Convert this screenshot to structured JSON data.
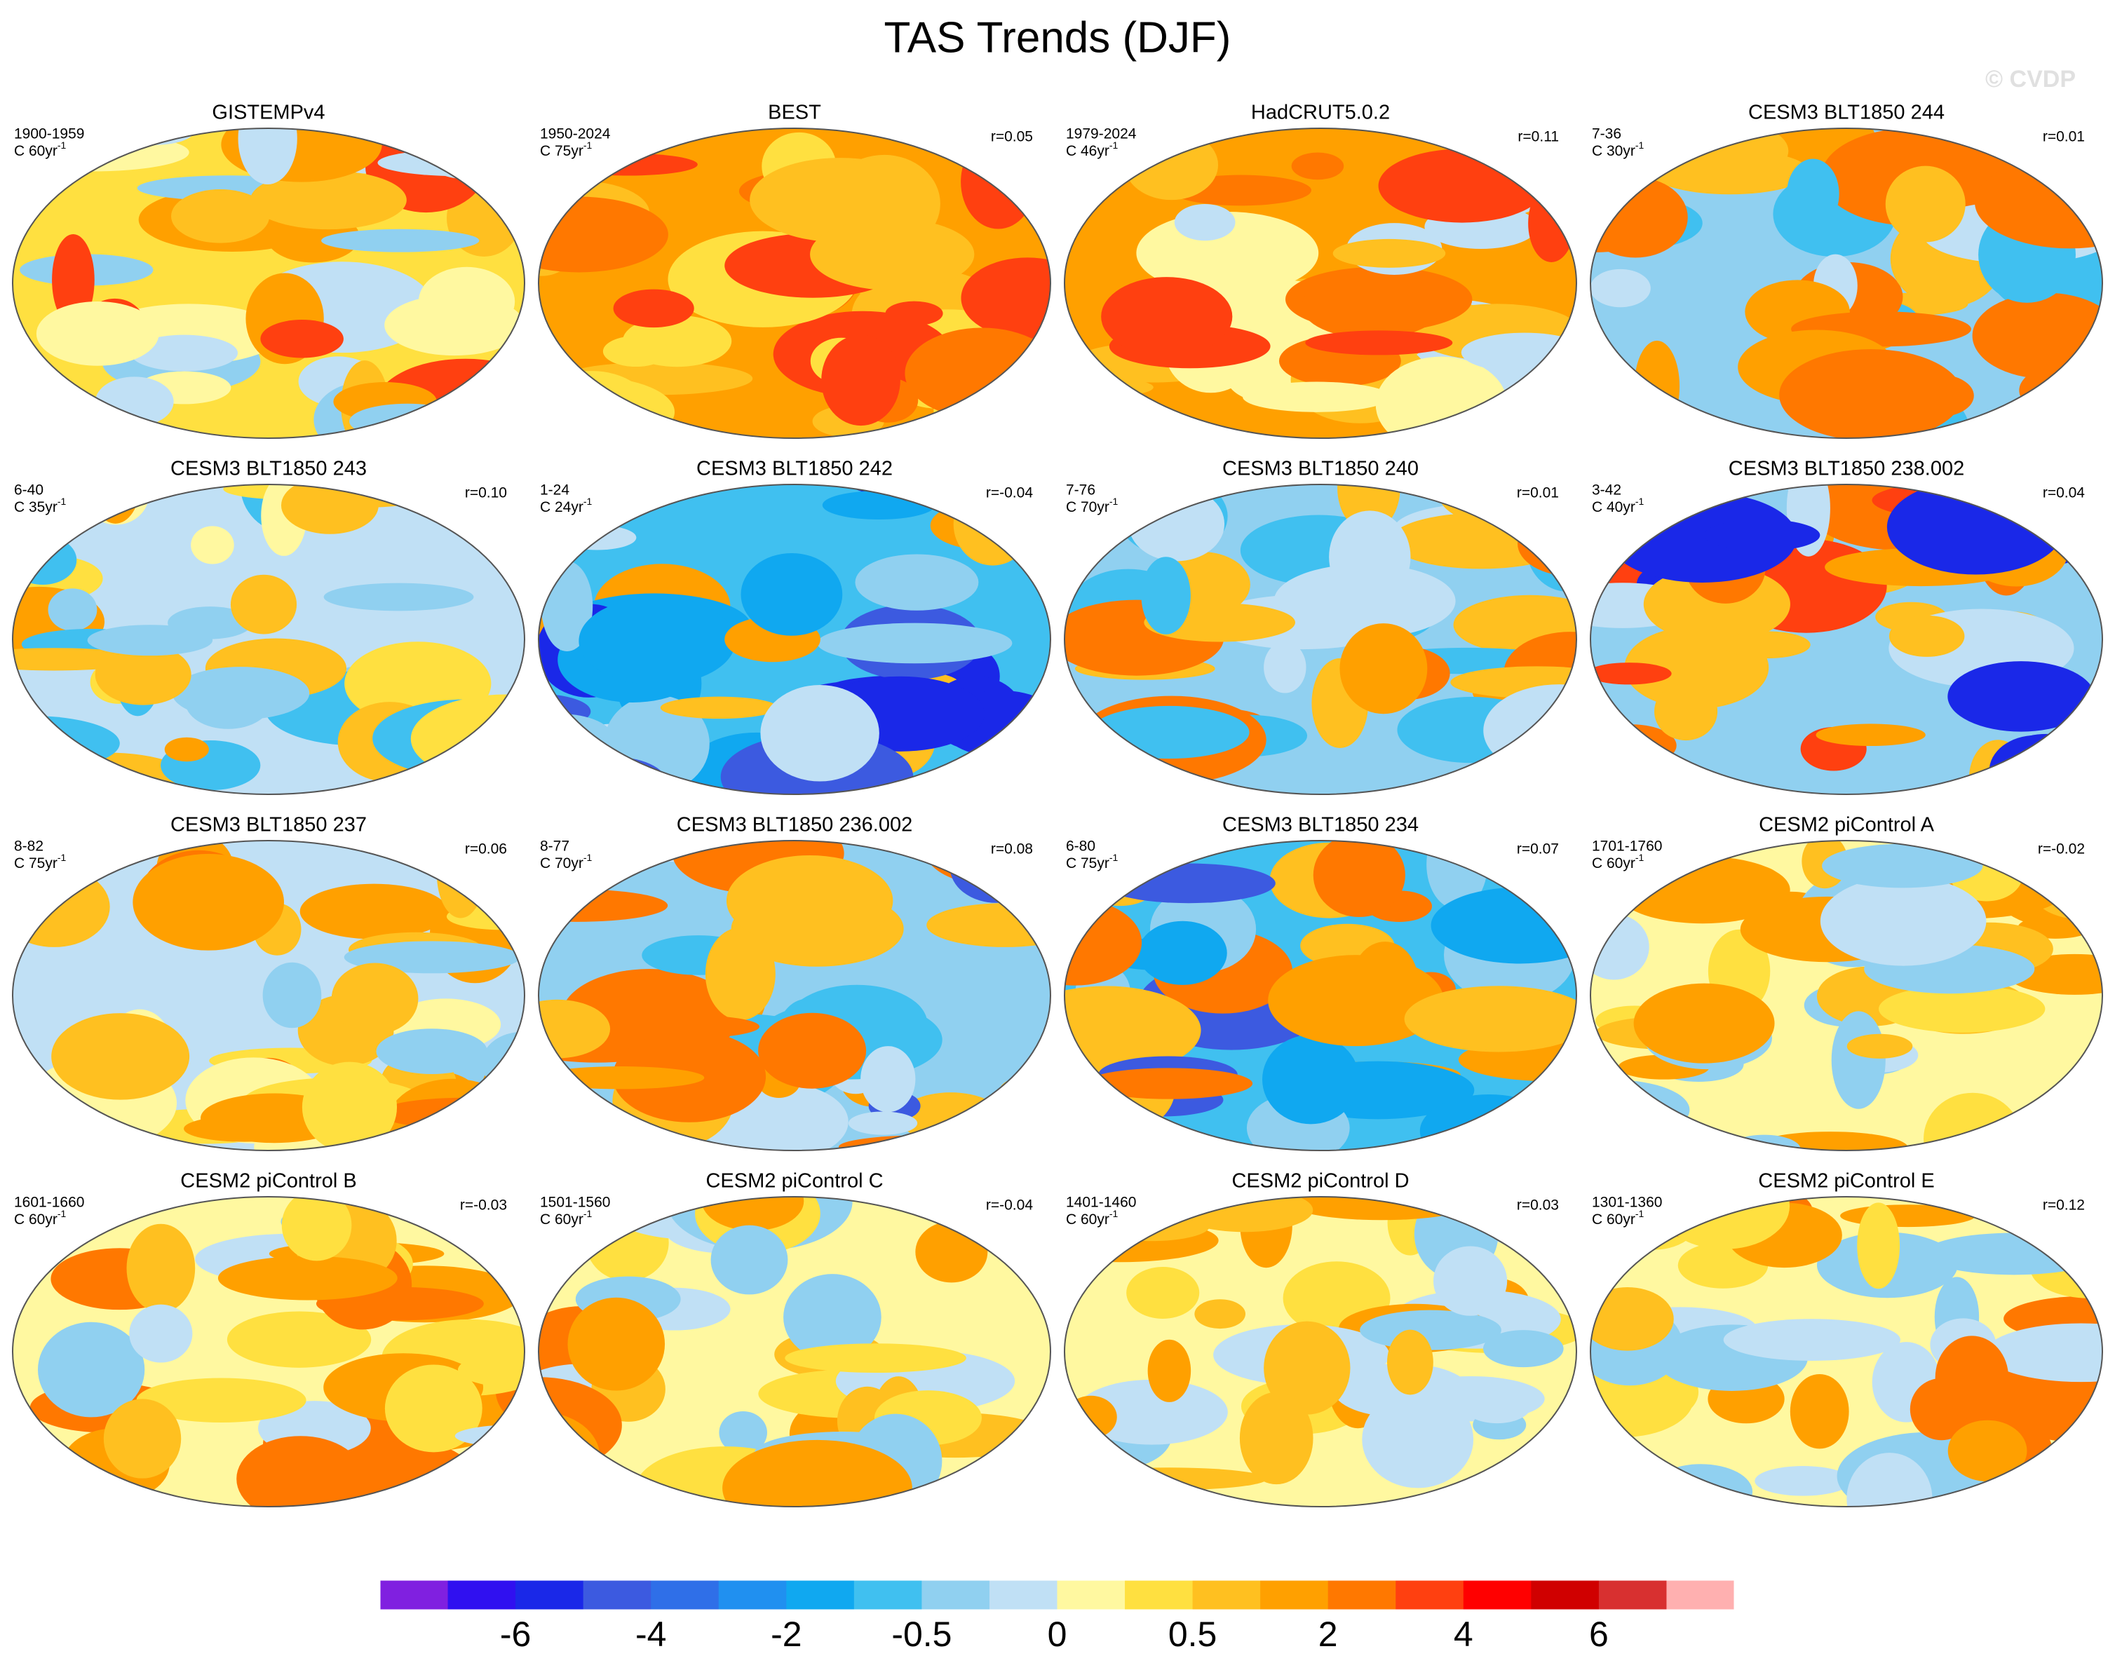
{
  "title": "TAS Trends (DJF)",
  "watermark": "© CVDP",
  "panels": [
    {
      "title": "GISTEMPv4",
      "period": "1900-1959",
      "units": "C 60yr",
      "units_sup": "-1"
    },
    {
      "title": "BEST",
      "period": "1950-2024",
      "units": "C 75yr",
      "units_sup": "-1",
      "r": "r=0.05"
    },
    {
      "title": "HadCRUT5.0.2",
      "period": "1979-2024",
      "units": "C 46yr",
      "units_sup": "-1",
      "r": "r=0.11"
    },
    {
      "title": "CESM3 BLT1850 244",
      "period": "7-36",
      "units": "C 30yr",
      "units_sup": "-1",
      "r": "r=0.01"
    },
    {
      "title": "CESM3 BLT1850 243",
      "period": "6-40",
      "units": "C 35yr",
      "units_sup": "-1",
      "r": "r=0.10"
    },
    {
      "title": "CESM3 BLT1850 242",
      "period": "1-24",
      "units": "C 24yr",
      "units_sup": "-1",
      "r": "r=-0.04"
    },
    {
      "title": "CESM3 BLT1850 240",
      "period": "7-76",
      "units": "C 70yr",
      "units_sup": "-1",
      "r": "r=0.01"
    },
    {
      "title": "CESM3 BLT1850 238.002",
      "period": "3-42",
      "units": "C 40yr",
      "units_sup": "-1",
      "r": "r=0.04"
    },
    {
      "title": "CESM3 BLT1850 237",
      "period": "8-82",
      "units": "C 75yr",
      "units_sup": "-1",
      "r": "r=0.06"
    },
    {
      "title": "CESM3 BLT1850 236.002",
      "period": "8-77",
      "units": "C 70yr",
      "units_sup": "-1",
      "r": "r=0.08"
    },
    {
      "title": "CESM3 BLT1850 234",
      "period": "6-80",
      "units": "C 75yr",
      "units_sup": "-1",
      "r": "r=0.07"
    },
    {
      "title": "CESM2 piControl A",
      "period": "1701-1760",
      "units": "C 60yr",
      "units_sup": "-1",
      "r": "r=-0.02"
    },
    {
      "title": "CESM2 piControl B",
      "period": "1601-1660",
      "units": "C 60yr",
      "units_sup": "-1",
      "r": "r=-0.03"
    },
    {
      "title": "CESM2 piControl C",
      "period": "1501-1560",
      "units": "C 60yr",
      "units_sup": "-1",
      "r": "r=-0.04"
    },
    {
      "title": "CESM2 piControl D",
      "period": "1401-1460",
      "units": "C 60yr",
      "units_sup": "-1",
      "r": "r=0.03"
    },
    {
      "title": "CESM2 piControl E",
      "period": "1301-1360",
      "units": "C 60yr",
      "units_sup": "-1",
      "r": "r=0.12"
    }
  ],
  "colorbar": {
    "colors": [
      "#8020e0",
      "#3010f0",
      "#1a28e8",
      "#3c5ae0",
      "#2f6fe8",
      "#2090f0",
      "#10a8f0",
      "#40c0f0",
      "#90d0f0",
      "#c0e0f5",
      "#fff8a0",
      "#ffe040",
      "#ffc020",
      "#ffa000",
      "#ff7800",
      "#ff4010",
      "#ff0000",
      "#d00000",
      "#d83030",
      "#ffb0b0"
    ],
    "labels": [
      -6,
      -4,
      -2,
      -0.5,
      0,
      0.5,
      2,
      4,
      6
    ]
  }
}
